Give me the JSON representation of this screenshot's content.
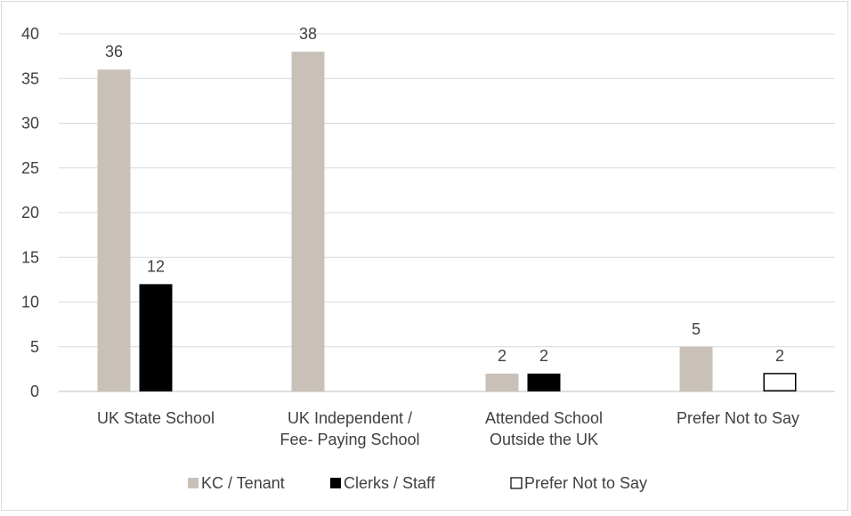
{
  "chart_data": {
    "type": "bar",
    "categories": [
      [
        "UK State School"
      ],
      [
        "UK Independent /",
        "Fee- Paying School"
      ],
      [
        "Attended School",
        "Outside the UK"
      ],
      [
        "Prefer Not to Say"
      ]
    ],
    "series": [
      {
        "name": "KC / Tenant",
        "values": [
          36,
          38,
          2,
          5
        ],
        "color": "#c9c1b8",
        "stroke": "none"
      },
      {
        "name": "Clerks / Staff",
        "values": [
          12,
          0,
          2,
          0
        ],
        "color": "#000000",
        "stroke": "none"
      },
      {
        "name": "Prefer Not to Say",
        "values": [
          0,
          0,
          0,
          2
        ],
        "color": "#ffffff",
        "stroke": "#000000"
      }
    ],
    "data_labels": [
      [
        36,
        38,
        2,
        5
      ],
      [
        12,
        null,
        2,
        null
      ],
      [
        null,
        null,
        null,
        2
      ]
    ],
    "ylim": [
      0,
      40
    ],
    "yticks": [
      0,
      5,
      10,
      15,
      20,
      25,
      30,
      35,
      40
    ],
    "grid": true,
    "legend_position": "bottom",
    "title": "",
    "xlabel": "",
    "ylabel": ""
  }
}
